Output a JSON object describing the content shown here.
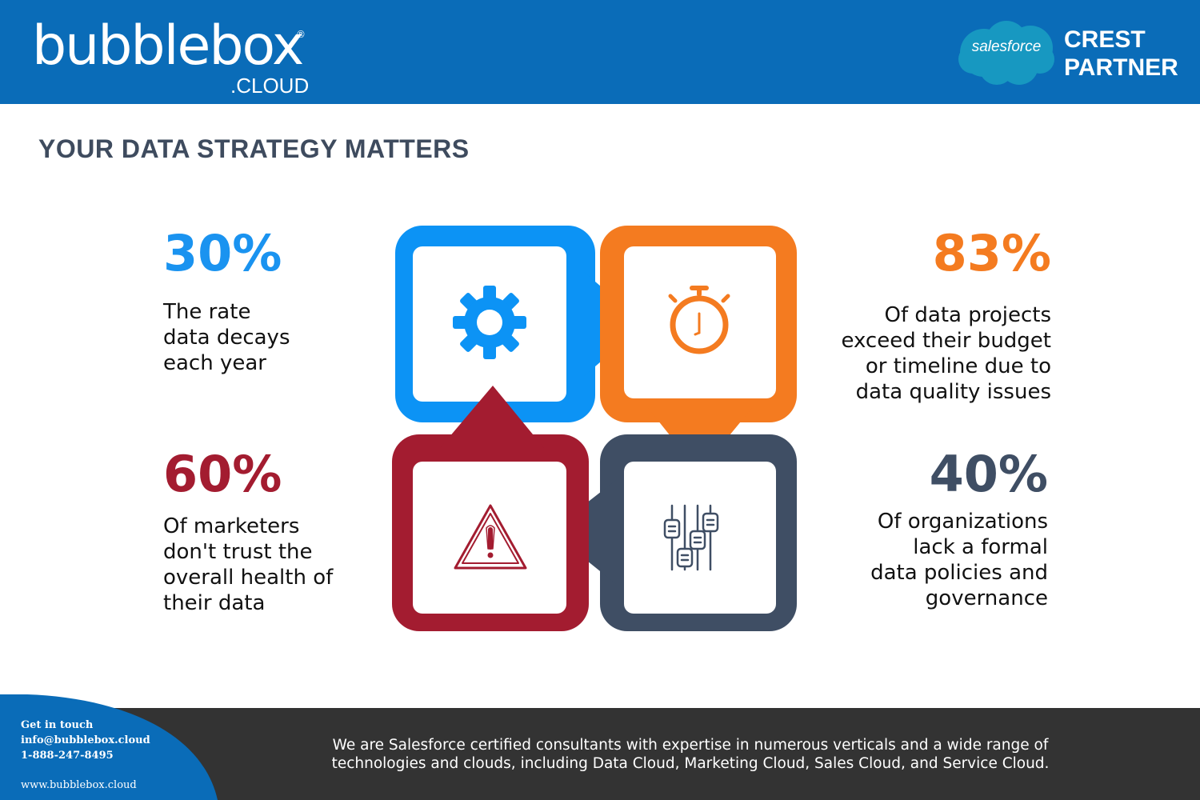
{
  "header": {
    "logo_main": "bubblebox",
    "logo_registered": "®",
    "logo_sub": ".CLOUD",
    "partner_brand": "salesforce",
    "partner_line1": "CREST",
    "partner_line2": "PARTNER",
    "background_color": "#0a6cb8"
  },
  "title": "YOUR DATA STRATEGY MATTERS",
  "stats": [
    {
      "value": "30%",
      "text": "The rate\ndata decays\neach year",
      "color": "#1a93f0",
      "icon": "gear-icon"
    },
    {
      "value": "83%",
      "text": "Of data projects\nexceed their budget\nor timeline due to\ndata quality issues",
      "color": "#f47b20",
      "icon": "stopwatch-icon"
    },
    {
      "value": "60%",
      "text": "Of marketers\ndon't trust the\noverall health of\ntheir data",
      "color": "#a31c30",
      "icon": "warning-icon"
    },
    {
      "value": "40%",
      "text": "Of organizations\nlack a formal\ndata policies and\ngovernance",
      "color": "#3f4e64",
      "icon": "sliders-icon"
    }
  ],
  "footer": {
    "contact_heading": "Get in touch",
    "email": "info@bubblebox.cloud",
    "phone": "1-888-247-8495",
    "website": "www.bubblebox.cloud",
    "description": "We are Salesforce certified consultants with expertise in numerous verticals and a wide range of\ntechnologies and clouds, including Data Cloud, Marketing Cloud, Sales Cloud, and Service Cloud.",
    "background_color": "#333333",
    "accent_color": "#0a6cb8"
  }
}
